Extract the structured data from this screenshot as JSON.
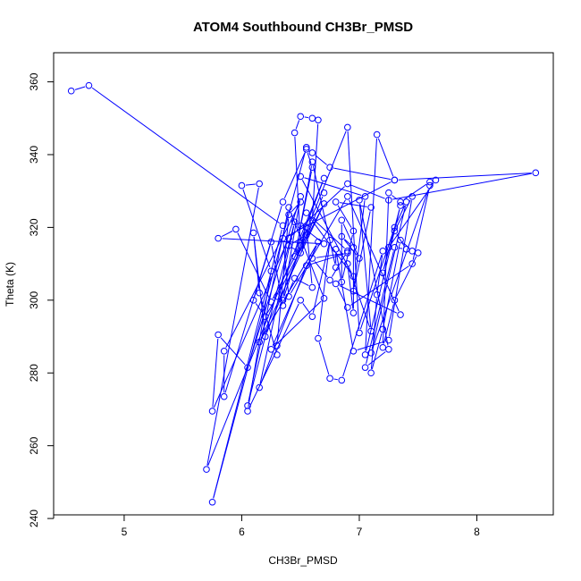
{
  "chart_data": {
    "type": "line",
    "title": "ATOM4 Southbound CH3Br_PMSD",
    "xlabel": "CH3Br_PMSD",
    "ylabel": "Theta (K)",
    "xlim": [
      4.4,
      8.65
    ],
    "ylim": [
      241,
      368
    ],
    "xticks": [
      5,
      6,
      7,
      8
    ],
    "yticks": [
      240,
      260,
      280,
      300,
      320,
      340,
      360
    ],
    "grid": false,
    "legend": "none",
    "color": "#0000ff",
    "markers": "open-circle",
    "series": [
      {
        "points": [
          [
            4.55,
            357.5
          ],
          [
            4.7,
            359.0
          ],
          [
            6.35,
            320.5
          ],
          [
            5.75,
            244.5
          ],
          [
            6.55,
            342.0
          ],
          [
            6.6,
            340.5
          ],
          [
            6.75,
            336.5
          ],
          [
            7.3,
            333.0
          ],
          [
            6.35,
            317.0
          ],
          [
            6.4,
            301.0
          ],
          [
            6.9,
            328.5
          ],
          [
            7.35,
            296.0
          ],
          [
            6.8,
            304.5
          ],
          [
            6.9,
            298.0
          ],
          [
            7.45,
            310.0
          ],
          [
            7.6,
            331.5
          ],
          [
            7.1,
            285.5
          ],
          [
            7.4,
            327.0
          ],
          [
            7.3,
            320.0
          ],
          [
            7.0,
            291.0
          ],
          [
            6.9,
            347.5
          ],
          [
            6.5,
            315.0
          ],
          [
            6.45,
            346.0
          ],
          [
            6.5,
            350.5
          ],
          [
            6.6,
            350.0
          ],
          [
            6.65,
            349.5
          ],
          [
            6.6,
            322.0
          ],
          [
            6.2,
            290.0
          ],
          [
            6.1,
            318.5
          ],
          [
            6.15,
            302.0
          ],
          [
            6.3,
            285.0
          ],
          [
            6.3,
            287.5
          ],
          [
            6.4,
            323.5
          ],
          [
            6.5,
            327.0
          ],
          [
            5.85,
            286.0
          ],
          [
            5.85,
            273.5
          ],
          [
            6.35,
            327.0
          ],
          [
            6.55,
            341.5
          ],
          [
            6.6,
            336.5
          ],
          [
            6.45,
            312.0
          ],
          [
            6.7,
            333.5
          ],
          [
            5.7,
            253.5
          ],
          [
            6.15,
            332.0
          ],
          [
            6.0,
            331.5
          ],
          [
            6.25,
            308.0
          ],
          [
            6.05,
            269.5
          ],
          [
            6.5,
            300.0
          ],
          [
            6.6,
            295.5
          ],
          [
            6.75,
            316.5
          ],
          [
            6.65,
            289.5
          ],
          [
            6.75,
            278.5
          ],
          [
            6.85,
            278.0
          ],
          [
            7.2,
            313.5
          ],
          [
            7.15,
            301.5
          ],
          [
            7.1,
            280.0
          ],
          [
            7.2,
            292.0
          ],
          [
            7.35,
            316.5
          ],
          [
            7.45,
            313.5
          ],
          [
            7.5,
            313.0
          ],
          [
            7.3,
            300.0
          ],
          [
            7.2,
            287.0
          ],
          [
            7.25,
            329.5
          ],
          [
            7.35,
            327.0
          ],
          [
            7.6,
            332.5
          ],
          [
            7.65,
            333.0
          ],
          [
            7.25,
            314.5
          ],
          [
            7.2,
            307.5
          ],
          [
            7.35,
            326.0
          ],
          [
            7.05,
            285.0
          ],
          [
            7.15,
            345.5
          ],
          [
            7.3,
            333.0
          ],
          [
            8.5,
            335.0
          ],
          [
            7.25,
            327.5
          ],
          [
            6.9,
            332.0
          ],
          [
            6.4,
            317.0
          ],
          [
            5.75,
            269.5
          ],
          [
            5.8,
            290.5
          ],
          [
            6.05,
            281.5
          ],
          [
            6.5,
            328.5
          ],
          [
            6.35,
            300.0
          ],
          [
            6.55,
            320.0
          ],
          [
            6.6,
            303.5
          ],
          [
            6.45,
            306.0
          ],
          [
            6.35,
            298.5
          ],
          [
            6.25,
            316.0
          ],
          [
            6.1,
            300.0
          ],
          [
            6.2,
            295.5
          ],
          [
            6.3,
            301.0
          ],
          [
            6.7,
            326.5
          ],
          [
            6.15,
            288.5
          ],
          [
            6.65,
            316.0
          ],
          [
            6.25,
            286.5
          ],
          [
            6.7,
            300.5
          ],
          [
            6.4,
            325.5
          ],
          [
            6.05,
            271.0
          ],
          [
            6.45,
            321.5
          ],
          [
            6.15,
            276.0
          ],
          [
            6.55,
            309.5
          ],
          [
            6.9,
            313.0
          ],
          [
            6.6,
            311.5
          ],
          [
            6.75,
            305.5
          ],
          [
            6.9,
            313.5
          ],
          [
            6.55,
            324.0
          ],
          [
            6.95,
            306.5
          ],
          [
            6.5,
            334.0
          ],
          [
            7.05,
            328.5
          ],
          [
            6.95,
            302.5
          ],
          [
            7.1,
            325.5
          ],
          [
            6.8,
            327.0
          ],
          [
            6.95,
            319.0
          ],
          [
            6.85,
            305.0
          ],
          [
            6.85,
            322.0
          ],
          [
            7.0,
            311.5
          ],
          [
            6.85,
            317.5
          ],
          [
            6.95,
            314.5
          ],
          [
            6.95,
            296.5
          ],
          [
            6.9,
            310.0
          ],
          [
            7.1,
            291.5
          ],
          [
            7.0,
            327.5
          ],
          [
            7.25,
            286.5
          ],
          [
            7.05,
            281.5
          ],
          [
            7.3,
            314.5
          ],
          [
            7.4,
            314.0
          ],
          [
            7.3,
            319.0
          ],
          [
            7.45,
            328.5
          ],
          [
            7.25,
            289.0
          ],
          [
            6.95,
            286.0
          ],
          [
            6.8,
            314.0
          ],
          [
            6.8,
            309.0
          ],
          [
            6.6,
            338.0
          ],
          [
            6.5,
            320.5
          ],
          [
            6.7,
            315.5
          ],
          [
            5.8,
            317.0
          ],
          [
            5.95,
            319.5
          ],
          [
            6.25,
            299.5
          ],
          [
            6.55,
            318.0
          ],
          [
            6.4,
            315.0
          ],
          [
            6.5,
            313.0
          ],
          [
            6.7,
            329.5
          ]
        ]
      }
    ]
  }
}
